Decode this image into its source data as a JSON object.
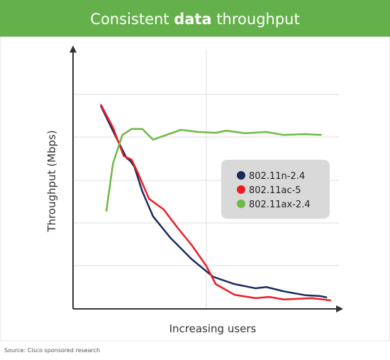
{
  "chart_data": {
    "type": "line",
    "title": [
      "Consistent ",
      "data",
      " throughput"
    ],
    "ylabel": "Throughput (Mbps)",
    "xlabel": "Increasing users",
    "source": "Source: Cisco sponsored research",
    "xlim": [
      0,
      2
    ],
    "ylim": [
      0,
      6
    ],
    "series": [
      {
        "name": "802.11n-2.4",
        "color": "#1b2a5e",
        "x": [
          0.21,
          0.3,
          0.4,
          0.43,
          0.46,
          0.52,
          0.6,
          0.73,
          0.89,
          1.05,
          1.21,
          1.37,
          1.45,
          1.58,
          1.74,
          1.85,
          1.9
        ],
        "values": [
          4.73,
          4.15,
          3.53,
          3.45,
          3.32,
          2.74,
          2.16,
          1.66,
          1.16,
          0.75,
          0.58,
          0.48,
          0.51,
          0.41,
          0.32,
          0.3,
          0.27
        ]
      },
      {
        "name": "802.11ac-5",
        "color": "#ee1c24",
        "x": [
          0.21,
          0.3,
          0.38,
          0.44,
          0.49,
          0.57,
          0.68,
          0.78,
          0.89,
          1.0,
          1.07,
          1.21,
          1.37,
          1.47,
          1.58,
          1.79,
          1.93
        ],
        "values": [
          4.76,
          4.23,
          3.57,
          3.48,
          3.15,
          2.57,
          2.32,
          1.91,
          1.49,
          1.0,
          0.58,
          0.33,
          0.25,
          0.28,
          0.22,
          0.25,
          0.2
        ]
      },
      {
        "name": "802.11ax-2.4",
        "color": "#6cb944",
        "x": [
          0.25,
          0.3,
          0.37,
          0.44,
          0.52,
          0.6,
          0.7,
          0.81,
          0.94,
          1.07,
          1.15,
          1.29,
          1.45,
          1.58,
          1.74,
          1.86
        ],
        "values": [
          2.29,
          3.4,
          4.06,
          4.2,
          4.2,
          3.95,
          4.06,
          4.18,
          4.13,
          4.11,
          4.16,
          4.1,
          4.13,
          4.06,
          4.08,
          4.06
        ]
      }
    ]
  }
}
